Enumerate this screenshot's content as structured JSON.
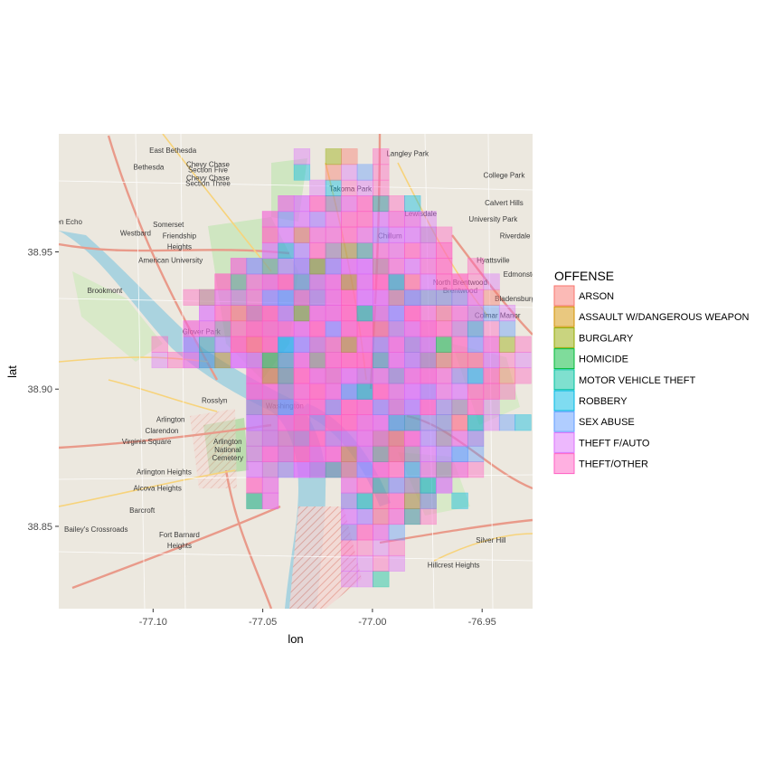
{
  "chart_data": {
    "type": "heatmap",
    "title": "",
    "xlabel": "lon",
    "ylabel": "lat",
    "xlim": [
      -77.143,
      -76.927
    ],
    "ylim": [
      38.82,
      38.993
    ],
    "x_ticks": [
      {
        "value": -77.1,
        "label": "-77.10"
      },
      {
        "value": -77.05,
        "label": "-77.05"
      },
      {
        "value": -77.0,
        "label": "-77.00"
      },
      {
        "value": -76.95,
        "label": "-76.95"
      }
    ],
    "y_ticks": [
      {
        "value": 38.85,
        "label": "38.85"
      },
      {
        "value": 38.9,
        "label": "38.90"
      },
      {
        "value": 38.95,
        "label": "38.95"
      }
    ],
    "legend": {
      "title": "OFFENSE",
      "position": "right",
      "entries": [
        {
          "label": "ARSON",
          "color": "#F8766D"
        },
        {
          "label": "ASSAULT W/DANGEROUS WEAPON",
          "color": "#D39200"
        },
        {
          "label": "BURGLARY",
          "color": "#93AA00"
        },
        {
          "label": "HOMICIDE",
          "color": "#00BA38"
        },
        {
          "label": "MOTOR VEHICLE THEFT",
          "color": "#00C19F"
        },
        {
          "label": "ROBBERY",
          "color": "#00B9E3"
        },
        {
          "label": "SEX ABUSE",
          "color": "#619CFF"
        },
        {
          "label": "THEFT F/AUTO",
          "color": "#DB72FB"
        },
        {
          "label": "THEFT/OTHER",
          "color": "#FF61C3"
        }
      ]
    },
    "bins": {
      "lon_width": 0.0072,
      "lat_width": 0.0057
    }
  },
  "basemap_labels": [
    {
      "text": "East Bethesda",
      "lon": -77.091,
      "lat": 38.986
    },
    {
      "text": "Bethesda",
      "lon": -77.102,
      "lat": 38.98
    },
    {
      "text": "Chevy Chase",
      "lon": -77.075,
      "lat": 38.981
    },
    {
      "text": "Section Five",
      "lon": -77.075,
      "lat": 38.979
    },
    {
      "text": "Chevy Chase",
      "lon": -77.075,
      "lat": 38.976
    },
    {
      "text": "Section Three",
      "lon": -77.075,
      "lat": 38.974
    },
    {
      "text": "Langley Park",
      "lon": -76.984,
      "lat": 38.985
    },
    {
      "text": "College Park",
      "lon": -76.94,
      "lat": 38.977
    },
    {
      "text": "Takoma Park",
      "lon": -77.01,
      "lat": 38.972
    },
    {
      "text": "Lewisdale",
      "lon": -76.978,
      "lat": 38.963
    },
    {
      "text": "Calvert Hills",
      "lon": -76.94,
      "lat": 38.967
    },
    {
      "text": "University Park",
      "lon": -76.945,
      "lat": 38.961
    },
    {
      "text": "Glen Echo",
      "lon": -77.14,
      "lat": 38.96
    },
    {
      "text": "Westbard",
      "lon": -77.108,
      "lat": 38.956
    },
    {
      "text": "Somerset",
      "lon": -77.093,
      "lat": 38.959
    },
    {
      "text": "Chillum",
      "lon": -76.992,
      "lat": 38.955
    },
    {
      "text": "Riverdale",
      "lon": -76.935,
      "lat": 38.955
    },
    {
      "text": "Friendship",
      "lon": -77.088,
      "lat": 38.955
    },
    {
      "text": "Heights",
      "lon": -77.088,
      "lat": 38.951
    },
    {
      "text": "American University",
      "lon": -77.092,
      "lat": 38.946
    },
    {
      "text": "Hyattsville",
      "lon": -76.945,
      "lat": 38.946
    },
    {
      "text": "Edmonston",
      "lon": -76.932,
      "lat": 38.941
    },
    {
      "text": "Brookmont",
      "lon": -77.122,
      "lat": 38.935
    },
    {
      "text": "North Brentwood",
      "lon": -76.96,
      "lat": 38.938
    },
    {
      "text": "Brentwood",
      "lon": -76.96,
      "lat": 38.935
    },
    {
      "text": "Bladensburg",
      "lon": -76.935,
      "lat": 38.932
    },
    {
      "text": "Colmar Manor",
      "lon": -76.943,
      "lat": 38.926
    },
    {
      "text": "Glover Park",
      "lon": -77.078,
      "lat": 38.92
    },
    {
      "text": "Rosslyn",
      "lon": -77.072,
      "lat": 38.895
    },
    {
      "text": "Arlington",
      "lon": -77.092,
      "lat": 38.888
    },
    {
      "text": "Washington",
      "lon": -77.04,
      "lat": 38.893
    },
    {
      "text": "Clarendon",
      "lon": -77.096,
      "lat": 38.884
    },
    {
      "text": "Virginia Square",
      "lon": -77.103,
      "lat": 38.88
    },
    {
      "text": "Arlington",
      "lon": -77.066,
      "lat": 38.88
    },
    {
      "text": "National",
      "lon": -77.066,
      "lat": 38.877
    },
    {
      "text": "Cemetery",
      "lon": -77.066,
      "lat": 38.874
    },
    {
      "text": "Arlington Heights",
      "lon": -77.095,
      "lat": 38.869
    },
    {
      "text": "Alcova Heights",
      "lon": -77.098,
      "lat": 38.863
    },
    {
      "text": "Barcroft",
      "lon": -77.105,
      "lat": 38.855
    },
    {
      "text": "Bailey's Crossroads",
      "lon": -77.126,
      "lat": 38.848
    },
    {
      "text": "Fort Barnard",
      "lon": -77.088,
      "lat": 38.846
    },
    {
      "text": "Heights",
      "lon": -77.088,
      "lat": 38.842
    },
    {
      "text": "Hillcrest Heights",
      "lon": -76.963,
      "lat": 38.835
    },
    {
      "text": "Silver Hill",
      "lon": -76.946,
      "lat": 38.844
    }
  ]
}
